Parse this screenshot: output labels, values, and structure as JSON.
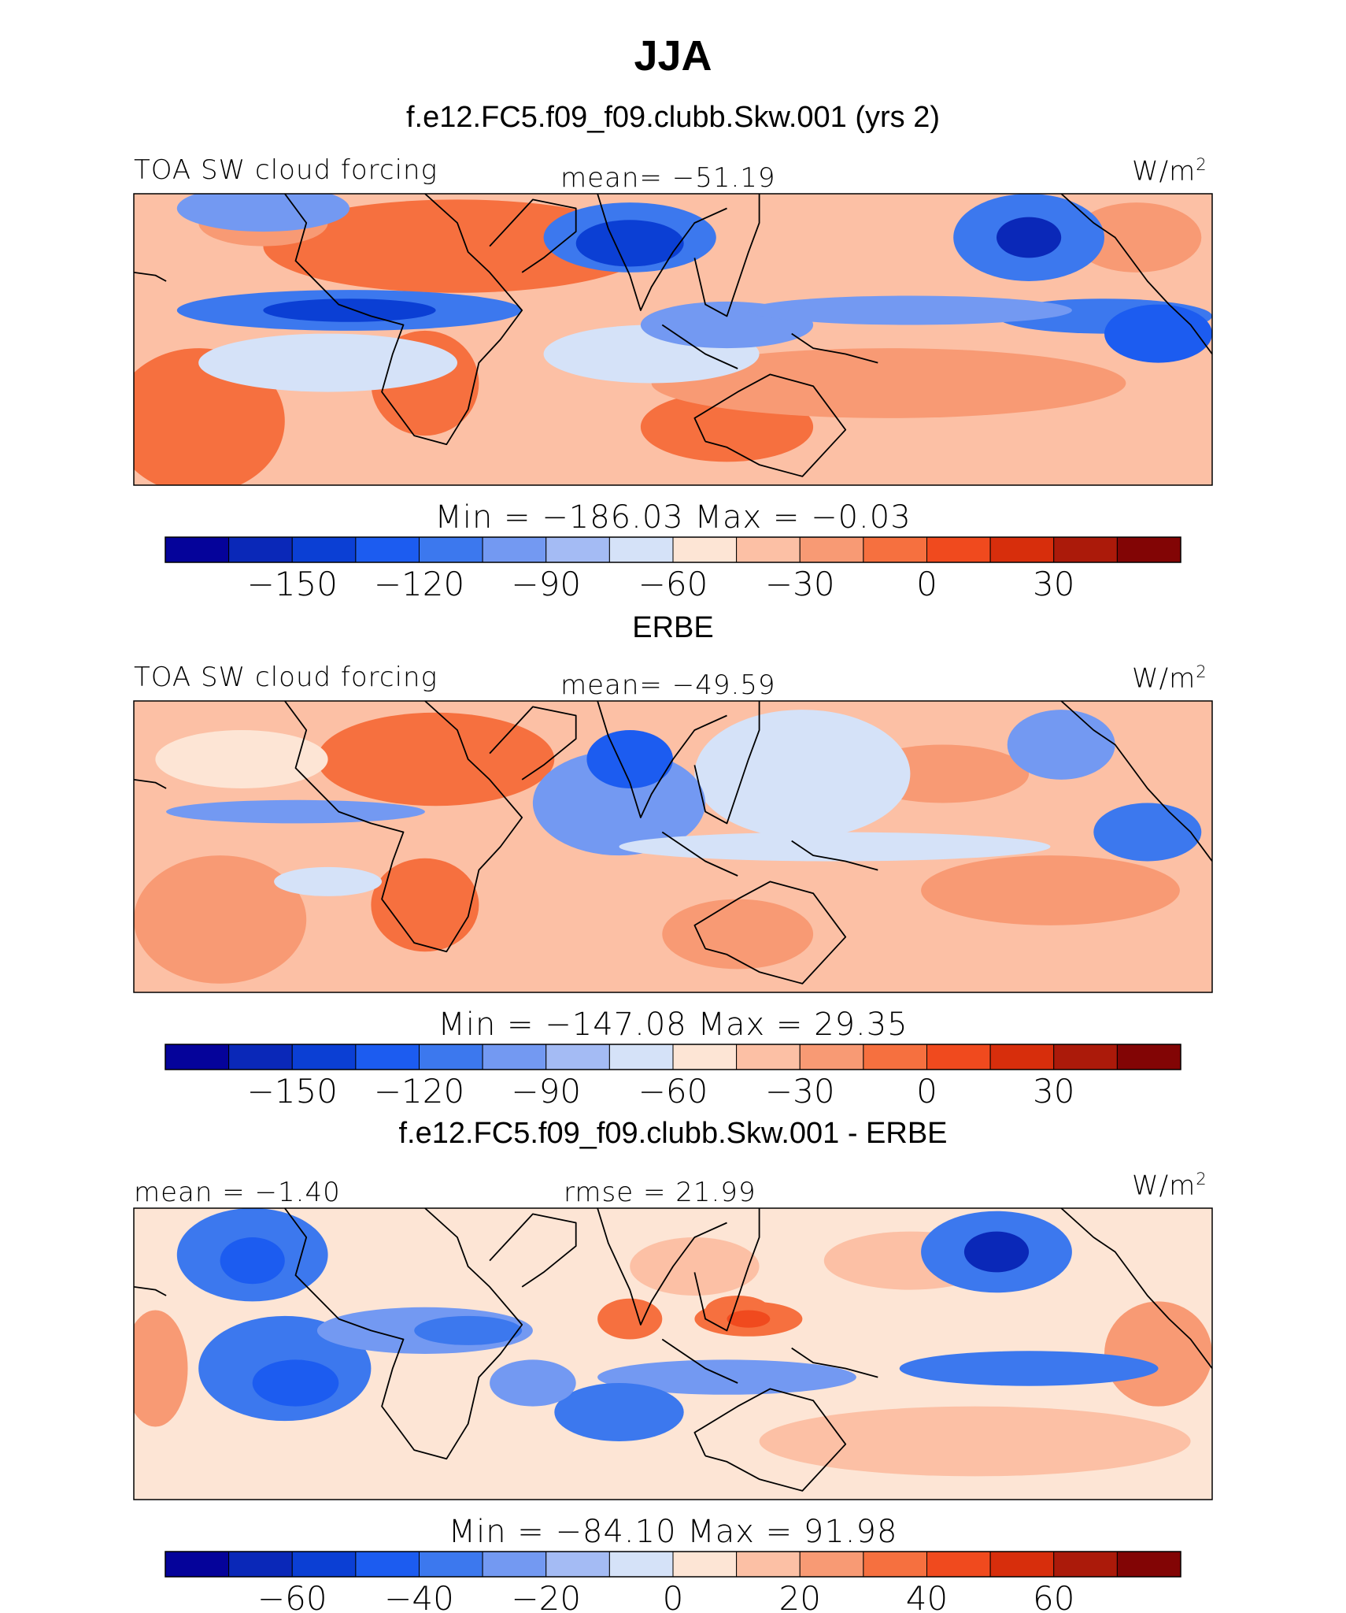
{
  "title": "JJA",
  "panels": [
    {
      "heading": "f.e12.FC5.f09_f09.clubb.Skw.001 (yrs 2)",
      "left_label": "TOA SW cloud forcing",
      "center_label": "mean= −51.19",
      "units": "W/m",
      "units_sup": "2",
      "minmax": "Min  =  −186.03  Max  =    −0.03",
      "colorbar": {
        "ticks": [
          "−150",
          "−120",
          "−90",
          "−60",
          "−30",
          "0",
          "30"
        ]
      }
    },
    {
      "heading": "ERBE",
      "left_label": "TOA SW cloud forcing",
      "center_label": "mean= −49.59",
      "units": "W/m",
      "units_sup": "2",
      "minmax": "Min  =  −147.08  Max  =    29.35",
      "colorbar": {
        "ticks": [
          "−150",
          "−120",
          "−90",
          "−60",
          "−30",
          "0",
          "30"
        ]
      }
    },
    {
      "heading": "f.e12.FC5.f09_f09.clubb.Skw.001 - ERBE",
      "left_label": "mean  =   −1.40",
      "center_label": "rmse  =   21.99",
      "units": "W/m",
      "units_sup": "2",
      "minmax": "Min  =  −84.10  Max  =   91.98",
      "colorbar": {
        "ticks": [
          "−60",
          "−40",
          "−20",
          "0",
          "20",
          "40",
          "60"
        ]
      }
    }
  ],
  "chart_data": [
    {
      "type": "heatmap",
      "title": "f.e12.FC5.f09_f09.clubb.Skw.001 (yrs 2)",
      "variable": "TOA SW cloud forcing",
      "units": "W/m2",
      "mean": -51.19,
      "min": -186.03,
      "max": -0.03,
      "contour_levels": [
        -165,
        -150,
        -135,
        -120,
        -105,
        -90,
        -75,
        -60,
        -45,
        -30,
        -15,
        0,
        15,
        30,
        45
      ],
      "colorbar_ticks": [
        -150,
        -120,
        -90,
        -60,
        -30,
        0,
        30
      ]
    },
    {
      "type": "heatmap",
      "title": "ERBE",
      "variable": "TOA SW cloud forcing",
      "units": "W/m2",
      "mean": -49.59,
      "min": -147.08,
      "max": 29.35,
      "contour_levels": [
        -165,
        -150,
        -135,
        -120,
        -105,
        -90,
        -75,
        -60,
        -45,
        -30,
        -15,
        0,
        15,
        30,
        45
      ],
      "colorbar_ticks": [
        -150,
        -120,
        -90,
        -60,
        -30,
        0,
        30
      ]
    },
    {
      "type": "heatmap",
      "title": "f.e12.FC5.f09_f09.clubb.Skw.001 - ERBE",
      "units": "W/m2",
      "mean": -1.4,
      "rmse": 21.99,
      "min": -84.1,
      "max": 91.98,
      "contour_levels": [
        -70,
        -60,
        -50,
        -40,
        -30,
        -20,
        -10,
        0,
        10,
        20,
        30,
        40,
        50,
        60,
        70
      ],
      "colorbar_ticks": [
        -60,
        -40,
        -20,
        0,
        20,
        40,
        60
      ]
    }
  ],
  "palette": [
    "#05039a",
    "#0a28b8",
    "#0b3fd4",
    "#1c5cf0",
    "#3c78ee",
    "#7399f2",
    "#a4bbf4",
    "#d5e2f8",
    "#fde5d5",
    "#fcc0a5",
    "#f89a74",
    "#f6703f",
    "#f04a1e",
    "#d72e0c",
    "#ab1a0a",
    "#820505"
  ],
  "map_fill_colors": {
    "neutral": "#fde5d5",
    "light_pos": "#fcc0a5",
    "pos": "#f89a74",
    "strong_pos": "#f6703f",
    "very_strong_pos": "#f04a1e",
    "light_neg": "#d5e2f8",
    "neg_1": "#a4bbf4",
    "neg_2": "#7399f2",
    "neg_3": "#3c78ee",
    "neg_4": "#1c5cf0",
    "neg_5": "#0b3fd4",
    "neg_6": "#0a28b8"
  }
}
